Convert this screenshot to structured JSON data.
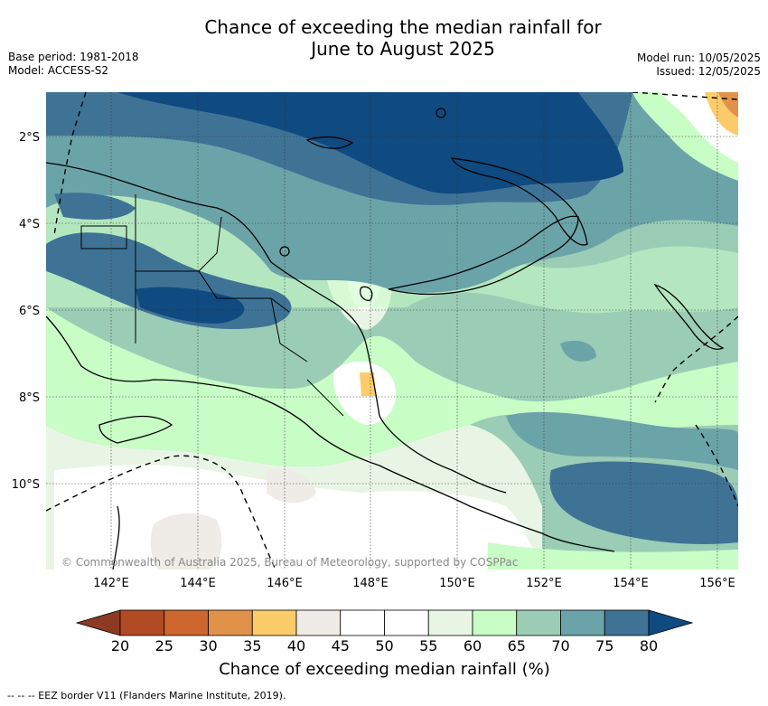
{
  "header": {
    "title_line1": "Chance of exceeding the median rainfall for",
    "title_line2": "June to August 2025",
    "base_period": "Base period: 1981-2018",
    "model": "Model: ACCESS-S2",
    "model_run": "Model run: 10/05/2025",
    "issued": "Issued: 12/05/2025"
  },
  "map": {
    "lat_labels": [
      "2°S",
      "4°S",
      "6°S",
      "8°S",
      "10°S"
    ],
    "lon_labels": [
      "142°E",
      "144°E",
      "146°E",
      "148°E",
      "150°E",
      "152°E",
      "154°E",
      "156°E"
    ],
    "copyright": "© Commonwealth of Australia 2025, Bureau of Meteorology, supported by COSPPac"
  },
  "colorbar": {
    "ticks": [
      "20",
      "25",
      "30",
      "35",
      "40",
      "45",
      "50",
      "55",
      "60",
      "65",
      "70",
      "75",
      "80"
    ],
    "colors": [
      "#b24a24",
      "#cd662f",
      "#e0924a",
      "#fdcc6a",
      "#efebe6",
      "#ffffff",
      "#ffffff",
      "#e8f5e4",
      "#c8fdc6",
      "#9bcdb6",
      "#6ba4a8",
      "#3f7396"
    ],
    "low_color": "#8c3a22",
    "high_color": "#0f4a80",
    "label": "Chance of exceeding median rainfall (%)"
  },
  "footer": {
    "legend": "-- -- -- EEZ border V11 (Flanders Marine Institute, 2019)."
  }
}
